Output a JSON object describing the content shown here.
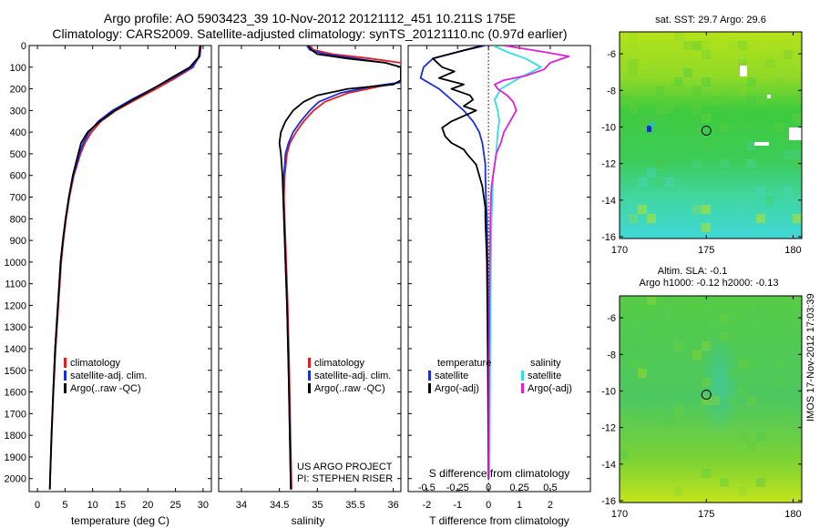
{
  "title_line1": "Argo profile: AO 5903423_39 10-Nov-2012 20121112_451 10.211S 175E",
  "title_line2": "Climatology: CARS2009. Satellite-adjusted climatology: synTS_20121110.nc (0.97d earlier)",
  "colors": {
    "climatology": "#e02020",
    "satellite": "#1a2ee0",
    "argo": "#000000",
    "sal_sat": "#2ee0e8",
    "sal_argo": "#e020d8",
    "sst_map": "#6ccc3c",
    "sla_map": "#6cd23c"
  },
  "depth_ticks": [
    0,
    100,
    200,
    300,
    400,
    500,
    600,
    700,
    800,
    900,
    1000,
    1100,
    1200,
    1300,
    1400,
    1500,
    1600,
    1700,
    1800,
    1900,
    2000
  ],
  "notes": {
    "project": "US ARGO PROJECT",
    "pi": "PI: STEPHEN RISER",
    "imos": "IMOS 17-Nov-2012 17:03:39"
  },
  "chart_data": [
    {
      "type": "line",
      "xlabel": "temperature (deg C)",
      "xlim": [
        -1.5,
        31.5
      ],
      "ylim": [
        2060,
        0
      ],
      "xticks": [
        0,
        5,
        10,
        15,
        20,
        25,
        30
      ],
      "legend": [
        "climatology",
        "satellite-adj. clim.",
        "Argo(..raw -QC)"
      ],
      "series": [
        {
          "name": "climatology",
          "depth": [
            0,
            50,
            100,
            150,
            200,
            250,
            300,
            350,
            400,
            450,
            500,
            600,
            700,
            800,
            900,
            1000,
            1200,
            1400,
            1600,
            1800,
            2000,
            2050
          ],
          "values": [
            29.4,
            29.2,
            28.2,
            25.0,
            21.5,
            17.8,
            14.2,
            11.5,
            9.8,
            8.6,
            7.8,
            6.6,
            5.8,
            5.2,
            4.7,
            4.3,
            3.8,
            3.3,
            2.9,
            2.6,
            2.3,
            2.25
          ]
        },
        {
          "name": "satellite-adj. clim.",
          "depth": [
            0,
            50,
            100,
            150,
            200,
            250,
            300,
            350,
            400,
            450,
            500,
            600,
            700,
            800,
            900,
            1000,
            1200,
            1400,
            1600,
            1800,
            2000,
            2050
          ],
          "values": [
            29.6,
            29.4,
            28.0,
            24.5,
            20.8,
            17.0,
            13.6,
            11.0,
            9.4,
            8.3,
            7.6,
            6.5,
            5.7,
            5.1,
            4.6,
            4.2,
            3.7,
            3.2,
            2.85,
            2.55,
            2.3,
            2.25
          ]
        },
        {
          "name": "Argo(..raw -QC)",
          "depth": [
            0,
            50,
            100,
            150,
            200,
            250,
            300,
            350,
            400,
            450,
            500,
            600,
            700,
            800,
            900,
            1000,
            1200,
            1400,
            1600,
            1800,
            2000,
            2050
          ],
          "values": [
            29.5,
            29.3,
            27.6,
            24.2,
            20.9,
            17.4,
            14.0,
            11.3,
            9.1,
            7.9,
            7.4,
            6.4,
            5.7,
            5.1,
            4.6,
            4.2,
            3.7,
            3.2,
            2.85,
            2.55,
            2.3,
            2.25
          ]
        }
      ]
    },
    {
      "type": "line",
      "xlabel": "salinity",
      "xlim": [
        33.7,
        36.1
      ],
      "ylim": [
        2060,
        0
      ],
      "xticks": [
        34,
        34.5,
        35,
        35.5,
        36
      ],
      "xtick_labels": [
        "34",
        "34.5",
        "35",
        "35.5",
        "36"
      ],
      "legend": [
        "climatology",
        "satellite-adj. clim.",
        "Argo(..raw -QC)"
      ],
      "series": [
        {
          "name": "climatology",
          "depth": [
            0,
            20,
            40,
            60,
            80,
            100,
            120,
            140,
            160,
            170,
            190,
            220,
            260,
            300,
            350,
            400,
            450,
            500,
            600,
            700,
            800,
            1000,
            1200,
            1500,
            2050
          ],
          "values": [
            34.9,
            34.95,
            35.2,
            35.7,
            36.1,
            36.1,
            36.1,
            36.1,
            36.1,
            36.1,
            35.8,
            35.4,
            35.1,
            34.95,
            34.82,
            34.72,
            34.64,
            34.6,
            34.57,
            34.56,
            34.57,
            34.59,
            34.61,
            34.63,
            34.66
          ]
        },
        {
          "name": "satellite-adj. clim.",
          "depth": [
            0,
            20,
            40,
            60,
            80,
            100,
            120,
            140,
            160,
            170,
            190,
            220,
            260,
            300,
            350,
            400,
            450,
            500,
            600,
            700,
            800,
            1000,
            1200,
            1500,
            2050
          ],
          "values": [
            34.86,
            34.9,
            35.1,
            35.5,
            35.9,
            36.1,
            36.1,
            36.1,
            36.1,
            36.1,
            35.7,
            35.3,
            35.02,
            34.9,
            34.78,
            34.68,
            34.62,
            34.58,
            34.56,
            34.55,
            34.56,
            34.58,
            34.6,
            34.62,
            34.65
          ]
        },
        {
          "name": "Argo(..raw -QC)",
          "depth": [
            0,
            20,
            40,
            60,
            80,
            100,
            120,
            140,
            160,
            180,
            200,
            230,
            260,
            300,
            350,
            400,
            450,
            500,
            600,
            700,
            800,
            1000,
            1200,
            1500,
            2050
          ],
          "values": [
            34.88,
            34.92,
            35.0,
            35.4,
            35.9,
            36.1,
            36.1,
            36.1,
            36.1,
            36.0,
            35.4,
            35.0,
            34.82,
            34.68,
            34.58,
            34.52,
            34.5,
            34.52,
            34.54,
            34.55,
            34.56,
            34.58,
            34.6,
            34.62,
            34.65
          ]
        }
      ]
    },
    {
      "type": "line",
      "xlabel": "T difference from climatology",
      "xlabel_top": "S difference from climatology",
      "xlim": [
        -2.6,
        3.3
      ],
      "ylim": [
        2060,
        0
      ],
      "xticks": [
        -2,
        -1,
        0,
        1,
        2
      ],
      "top_ticks": [
        -0.5,
        -0.25,
        0,
        0.25,
        0.5
      ],
      "top_tick_labels": [
        "-0.5",
        "-0.25",
        "0",
        "0.25",
        "0.5"
      ],
      "legend_headers": [
        "temperature",
        "salinity"
      ],
      "legend": [
        "satellite",
        "Argo(-adj)",
        "satellite",
        "Argo(-adj)"
      ],
      "series": [
        {
          "name": "satellite",
          "quantity": "temperature",
          "depth": [
            0,
            30,
            60,
            100,
            150,
            200,
            250,
            300,
            350,
            400,
            450,
            500,
            550,
            600,
            700,
            800,
            900,
            1000,
            1200,
            1500,
            2000
          ],
          "values": [
            -0.1,
            -1.0,
            -1.8,
            -2.1,
            -2.2,
            -1.6,
            -1.2,
            -0.8,
            -0.5,
            -0.3,
            -0.2,
            -0.15,
            -0.1,
            -0.1,
            -0.08,
            -0.05,
            -0.04,
            -0.03,
            -0.02,
            -0.01,
            0.0
          ]
        },
        {
          "name": "Argo(-adj)",
          "quantity": "temperature",
          "depth": [
            0,
            30,
            60,
            100,
            120,
            150,
            180,
            200,
            230,
            250,
            280,
            300,
            350,
            380,
            420,
            450,
            480,
            500,
            550,
            600,
            650,
            700,
            750,
            800,
            1000,
            1500,
            2000
          ],
          "values": [
            -0.2,
            -1.0,
            -1.8,
            -1.5,
            -1.1,
            -1.6,
            -0.8,
            -1.2,
            -0.6,
            -0.5,
            -0.8,
            -0.4,
            -1.2,
            -1.5,
            -1.4,
            -1.2,
            -0.8,
            -0.7,
            -0.4,
            -0.3,
            -0.2,
            -0.15,
            -0.1,
            -0.1,
            -0.05,
            -0.02,
            0.0
          ]
        },
        {
          "name": "satellite",
          "quantity": "salinity",
          "depth": [
            0,
            30,
            60,
            100,
            150,
            200,
            250,
            300,
            350,
            400,
            500,
            600,
            800,
            1000,
            1500,
            2000
          ],
          "values": [
            0.15,
            0.6,
            1.2,
            1.7,
            1.0,
            0.4,
            0.2,
            0.3,
            0.35,
            0.3,
            0.25,
            0.15,
            0.1,
            0.08,
            0.05,
            0.03
          ]
        },
        {
          "name": "Argo(-adj)",
          "quantity": "salinity",
          "depth": [
            0,
            30,
            50,
            80,
            110,
            140,
            160,
            180,
            200,
            230,
            260,
            300,
            350,
            400,
            450,
            500,
            550,
            600,
            650,
            700,
            800,
            1000,
            1500,
            2000
          ],
          "values": [
            0.5,
            1.8,
            2.6,
            2.0,
            1.8,
            1.2,
            0.5,
            0.2,
            0.3,
            0.6,
            0.8,
            0.9,
            0.7,
            0.5,
            0.4,
            0.25,
            0.2,
            0.15,
            0.1,
            0.08,
            0.06,
            0.04,
            0.02,
            0.0
          ]
        }
      ]
    },
    {
      "type": "heatmap",
      "title": "sat. SST: 29.7  Argo: 29.6",
      "xlim": [
        170,
        180.5
      ],
      "ylim": [
        -16.1,
        -4.8
      ],
      "xticks": [
        170,
        175,
        180
      ],
      "yticks": [
        -6,
        -8,
        -10,
        -12,
        -14,
        -16
      ],
      "marker": {
        "lon": 175,
        "lat": -10.2
      }
    },
    {
      "type": "heatmap",
      "title": "Altim. SLA: -0.1",
      "subtitle": "Argo h1000: -0.12  h2000: -0.13",
      "xlim": [
        170,
        180.5
      ],
      "ylim": [
        -16.1,
        -4.8
      ],
      "xticks": [
        170,
        175,
        180
      ],
      "yticks": [
        -6,
        -8,
        -10,
        -12,
        -14,
        -16
      ],
      "marker": {
        "lon": 175,
        "lat": -10.2
      }
    }
  ]
}
